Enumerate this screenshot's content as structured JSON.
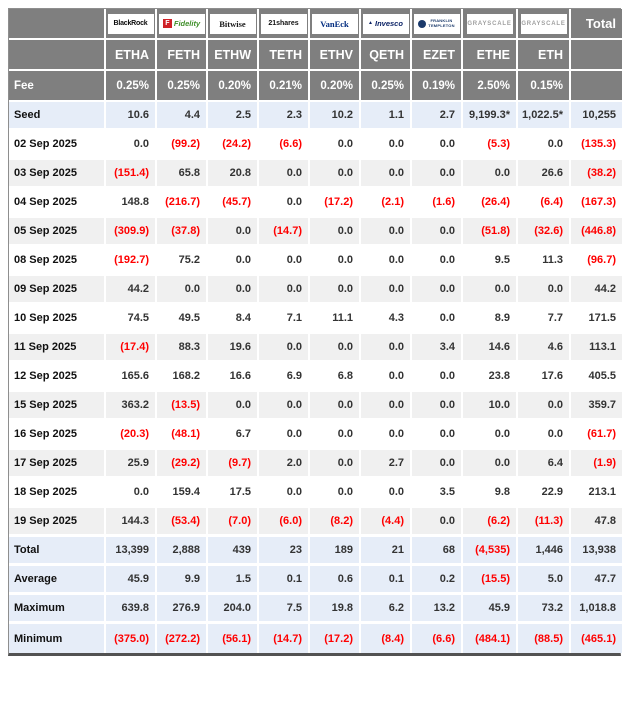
{
  "chart_data": {
    "type": "table",
    "total_label": "Total",
    "fee_label": "Fee",
    "providers": [
      {
        "id": "blackrock",
        "name": "BlackRock",
        "logo_text": "BlackRock",
        "ticker": "ETHA",
        "fee": "0.25%"
      },
      {
        "id": "fidelity",
        "name": "Fidelity",
        "logo_text": "Fidelity",
        "ticker": "FETH",
        "fee": "0.25%"
      },
      {
        "id": "bitwise",
        "name": "Bitwise",
        "logo_text": "Bitwise",
        "ticker": "ETHW",
        "fee": "0.20%"
      },
      {
        "id": "s21shares",
        "name": "21shares",
        "logo_text": "21shares",
        "ticker": "TETH",
        "fee": "0.21%"
      },
      {
        "id": "vaneck",
        "name": "VanEck",
        "logo_text": "VanEck",
        "ticker": "ETHV",
        "fee": "0.20%"
      },
      {
        "id": "invesco",
        "name": "Invesco",
        "logo_text": "Invesco",
        "ticker": "QETH",
        "fee": "0.25%"
      },
      {
        "id": "franklin",
        "name": "Franklin Templeton",
        "logo_text": "FRANKLIN TEMPLETON",
        "logo_lines": [
          "FRANKLIN",
          "TEMPLETON"
        ],
        "ticker": "EZET",
        "fee": "0.19%"
      },
      {
        "id": "grayscale",
        "name": "Grayscale",
        "logo_text": "GRAYSCALE",
        "ticker": "ETHE",
        "fee": "2.50%"
      },
      {
        "id": "grayscale2",
        "name": "Grayscale",
        "logo_text": "GRAYSCALE",
        "ticker": "ETH",
        "fee": "0.15%"
      }
    ],
    "columns": [
      "",
      "ETHA",
      "FETH",
      "ETHW",
      "TETH",
      "ETHV",
      "QETH",
      "EZET",
      "ETHE",
      "ETH",
      "Total"
    ],
    "rows": [
      {
        "label": "Seed",
        "style": "highlight",
        "values": [
          "10.6",
          "4.4",
          "2.5",
          "2.3",
          "10.2",
          "1.1",
          "2.7",
          "9,199.3*",
          "1,022.5*",
          "10,255"
        ]
      },
      {
        "label": "02 Sep 2025",
        "style": "plain",
        "values": [
          "0.0",
          "(99.2)",
          "(24.2)",
          "(6.6)",
          "0.0",
          "0.0",
          "0.0",
          "(5.3)",
          "0.0",
          "(135.3)"
        ]
      },
      {
        "label": "03 Sep 2025",
        "style": "alt",
        "values": [
          "(151.4)",
          "65.8",
          "20.8",
          "0.0",
          "0.0",
          "0.0",
          "0.0",
          "0.0",
          "26.6",
          "(38.2)"
        ]
      },
      {
        "label": "04 Sep 2025",
        "style": "plain",
        "values": [
          "148.8",
          "(216.7)",
          "(45.7)",
          "0.0",
          "(17.2)",
          "(2.1)",
          "(1.6)",
          "(26.4)",
          "(6.4)",
          "(167.3)"
        ]
      },
      {
        "label": "05 Sep 2025",
        "style": "alt",
        "values": [
          "(309.9)",
          "(37.8)",
          "0.0",
          "(14.7)",
          "0.0",
          "0.0",
          "0.0",
          "(51.8)",
          "(32.6)",
          "(446.8)"
        ]
      },
      {
        "label": "08 Sep 2025",
        "style": "plain",
        "values": [
          "(192.7)",
          "75.2",
          "0.0",
          "0.0",
          "0.0",
          "0.0",
          "0.0",
          "9.5",
          "11.3",
          "(96.7)"
        ]
      },
      {
        "label": "09 Sep 2025",
        "style": "alt",
        "values": [
          "44.2",
          "0.0",
          "0.0",
          "0.0",
          "0.0",
          "0.0",
          "0.0",
          "0.0",
          "0.0",
          "44.2"
        ]
      },
      {
        "label": "10 Sep 2025",
        "style": "plain",
        "values": [
          "74.5",
          "49.5",
          "8.4",
          "7.1",
          "11.1",
          "4.3",
          "0.0",
          "8.9",
          "7.7",
          "171.5"
        ]
      },
      {
        "label": "11 Sep 2025",
        "style": "alt",
        "values": [
          "(17.4)",
          "88.3",
          "19.6",
          "0.0",
          "0.0",
          "0.0",
          "3.4",
          "14.6",
          "4.6",
          "113.1"
        ]
      },
      {
        "label": "12 Sep 2025",
        "style": "plain",
        "values": [
          "165.6",
          "168.2",
          "16.6",
          "6.9",
          "6.8",
          "0.0",
          "0.0",
          "23.8",
          "17.6",
          "405.5"
        ]
      },
      {
        "label": "15 Sep 2025",
        "style": "alt",
        "values": [
          "363.2",
          "(13.5)",
          "0.0",
          "0.0",
          "0.0",
          "0.0",
          "0.0",
          "10.0",
          "0.0",
          "359.7"
        ]
      },
      {
        "label": "16 Sep 2025",
        "style": "plain",
        "values": [
          "(20.3)",
          "(48.1)",
          "6.7",
          "0.0",
          "0.0",
          "0.0",
          "0.0",
          "0.0",
          "0.0",
          "(61.7)"
        ]
      },
      {
        "label": "17 Sep 2025",
        "style": "alt",
        "values": [
          "25.9",
          "(29.2)",
          "(9.7)",
          "2.0",
          "0.0",
          "2.7",
          "0.0",
          "0.0",
          "6.4",
          "(1.9)"
        ]
      },
      {
        "label": "18 Sep 2025",
        "style": "plain",
        "values": [
          "0.0",
          "159.4",
          "17.5",
          "0.0",
          "0.0",
          "0.0",
          "3.5",
          "9.8",
          "22.9",
          "213.1"
        ]
      },
      {
        "label": "19 Sep 2025",
        "style": "alt",
        "values": [
          "144.3",
          "(53.4)",
          "(7.0)",
          "(6.0)",
          "(8.2)",
          "(4.4)",
          "0.0",
          "(6.2)",
          "(11.3)",
          "47.8"
        ]
      },
      {
        "label": "Total",
        "style": "highlight",
        "values": [
          "13,399",
          "2,888",
          "439",
          "23",
          "189",
          "21",
          "68",
          "(4,535)",
          "1,446",
          "13,938"
        ]
      },
      {
        "label": "Average",
        "style": "highlight",
        "values": [
          "45.9",
          "9.9",
          "1.5",
          "0.1",
          "0.6",
          "0.1",
          "0.2",
          "(15.5)",
          "5.0",
          "47.7"
        ]
      },
      {
        "label": "Maximum",
        "style": "highlight",
        "values": [
          "639.8",
          "276.9",
          "204.0",
          "7.5",
          "19.8",
          "6.2",
          "13.2",
          "45.9",
          "73.2",
          "1,018.8"
        ]
      },
      {
        "label": "Minimum",
        "style": "highlight",
        "values": [
          "(375.0)",
          "(272.2)",
          "(56.1)",
          "(14.7)",
          "(17.2)",
          "(8.4)",
          "(6.6)",
          "(484.1)",
          "(88.5)",
          "(465.1)"
        ]
      }
    ],
    "layout_hints": {
      "negative_format": "parentheses",
      "negative_color": "#ff0000",
      "header_bg": "#7f7f7f",
      "highlight_row_bg": "#e6edf8",
      "alt_row_bg": "#f0f0f0"
    }
  }
}
